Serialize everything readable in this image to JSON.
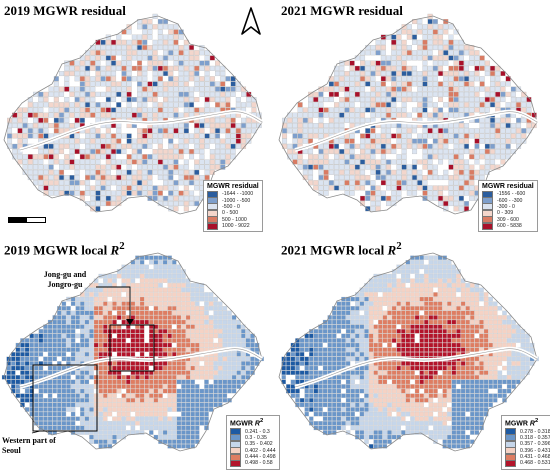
{
  "panels": {
    "resid2019": {
      "title": "2019 MGWR residual"
    },
    "resid2021": {
      "title": "2021 MGWR residual"
    },
    "r2_2019": {
      "title_prefix": "2019 MGWR local ",
      "title_var": "R",
      "title_sup": "2"
    },
    "r2_2021": {
      "title_prefix": "2021 MGWR local ",
      "title_var": "R",
      "title_sup": "2"
    }
  },
  "legends": {
    "resid2019": {
      "title": "MGWR residual",
      "items": [
        {
          "label": "-1644 - -1000",
          "color": "#2b5d9e"
        },
        {
          "label": "-1000 - -500",
          "color": "#7e9fcc"
        },
        {
          "label": "-500 - 0",
          "color": "#dbe4f1"
        },
        {
          "label": "0 - 500",
          "color": "#f3d6cc"
        },
        {
          "label": "500 - 1000",
          "color": "#d97b63"
        },
        {
          "label": "1000 - 9022",
          "color": "#a8102a"
        }
      ]
    },
    "resid2021": {
      "title": "MGWR residual",
      "items": [
        {
          "label": "-1556 - -600",
          "color": "#2b5d9e"
        },
        {
          "label": "-600 - -300",
          "color": "#7e9fcc"
        },
        {
          "label": "-300 - 0",
          "color": "#dbe4f1"
        },
        {
          "label": "0 - 309",
          "color": "#f3d6cc"
        },
        {
          "label": "309 - 600",
          "color": "#d97b63"
        },
        {
          "label": "600 - 5838",
          "color": "#a8102a"
        }
      ]
    },
    "r2_2019": {
      "title_prefix": "MGWR ",
      "title_var": "R",
      "title_sup": "2",
      "items": [
        {
          "label": "0.241 - 0.3",
          "color": "#1d5aa3"
        },
        {
          "label": "0.3 - 0.35",
          "color": "#6a96c9"
        },
        {
          "label": "0.35 - 0.402",
          "color": "#c6d6ea"
        },
        {
          "label": "0.402 - 0.444",
          "color": "#f5d2c4"
        },
        {
          "label": "0.444 - 0.498",
          "color": "#de7d62"
        },
        {
          "label": "0.498 - 0.58",
          "color": "#b3142a"
        }
      ]
    },
    "r2_2021": {
      "title_prefix": "MGWR ",
      "title_var": "R",
      "title_sup": "2",
      "items": [
        {
          "label": "0.278 - 0.318",
          "color": "#1d5aa3"
        },
        {
          "label": "0.318 - 0.357",
          "color": "#6a96c9"
        },
        {
          "label": "0.357 - 0.396",
          "color": "#c6d6ea"
        },
        {
          "label": "0.396 - 0.431",
          "color": "#f5d2c4"
        },
        {
          "label": "0.431 - 0.468",
          "color": "#de7d62"
        },
        {
          "label": "0.468 - 0.531",
          "color": "#b3142a"
        }
      ]
    }
  },
  "annotations": {
    "jongro": "Jong-gu and Jongro-gu",
    "western": "Western part of Seoul"
  },
  "icons": {
    "north": "north-arrow-icon",
    "scale": "scale-bar"
  }
}
